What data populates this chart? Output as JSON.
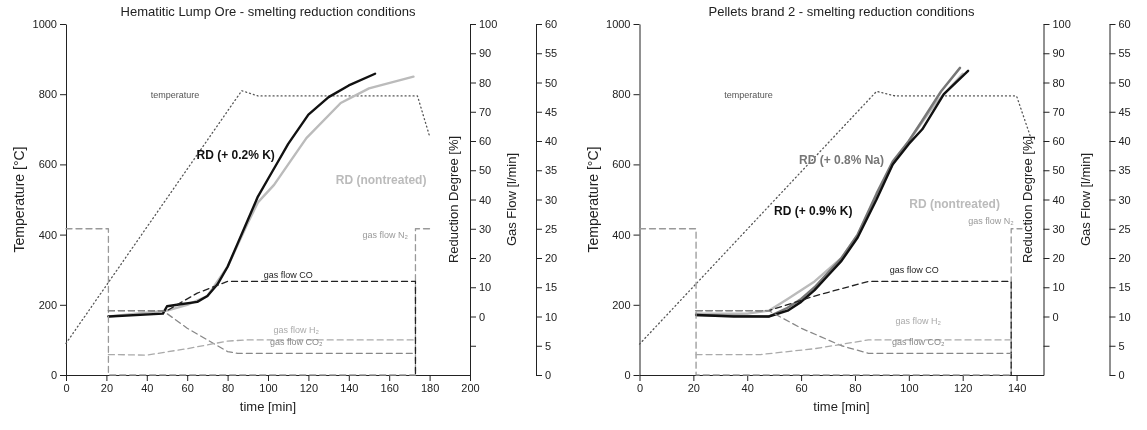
{
  "chart_data": [
    {
      "type": "line",
      "title": "Hematitic Lump Ore - smelting reduction conditions",
      "xlabel": "time [min]",
      "ylabel": "Temperature [°C]",
      "y2label": "Reduction Degree [%]",
      "y3label": "Gas Flow [l/min]",
      "xlim": [
        0,
        200
      ],
      "xticks": [
        0,
        20,
        40,
        60,
        80,
        100,
        120,
        140,
        160,
        180,
        200
      ],
      "ylim": [
        0,
        1000
      ],
      "yticks": [
        0,
        200,
        400,
        600,
        800,
        1000
      ],
      "y2lim": [
        -20,
        100
      ],
      "y2ticks": [
        {
          "value": -10,
          "label": null
        },
        0,
        10,
        20,
        30,
        40,
        50,
        60,
        70,
        80,
        90,
        100
      ],
      "y3lim": [
        0,
        60
      ],
      "y3ticks": [
        0,
        5,
        10,
        15,
        20,
        25,
        30,
        35,
        40,
        45,
        50,
        55,
        60
      ],
      "marker": "none",
      "series": [
        {
          "name": "temperature",
          "color": "#555555",
          "line_style": "dotted",
          "x": [
            0,
            87,
            95,
            174,
            180
          ],
          "values": [
            90,
            810,
            795,
            795,
            680
          ]
        },
        {
          "name": "RD (nontreated)",
          "color": "#bbbbbb",
          "axis": "y2",
          "line_style": "solid",
          "x": [
            21,
            50,
            60,
            70,
            80,
            90,
            95,
            103,
            110,
            119,
            136,
            150,
            172
          ],
          "values": [
            0,
            2,
            4,
            7,
            17,
            32,
            39,
            45,
            52,
            61,
            73,
            78,
            82
          ]
        },
        {
          "name": "RD (+ 0.2% K)",
          "color": "#111111",
          "axis": "y2",
          "line_style": "solid",
          "x": [
            21,
            48,
            50,
            55,
            65,
            70,
            75,
            80,
            85,
            90,
            95,
            100,
            105,
            110,
            120,
            130,
            140,
            153
          ],
          "values": [
            0,
            1,
            3.5,
            4,
            5,
            7,
            11,
            17,
            25,
            33,
            41,
            47,
            53,
            59,
            69,
            75,
            79,
            83
          ]
        },
        {
          "name": "gas flow N₂",
          "color": "#999999",
          "axis": "y3",
          "line_style": "dashed",
          "x": [
            0,
            21,
            21,
            173,
            173,
            180
          ],
          "values": [
            25,
            25,
            0,
            0,
            25,
            25
          ]
        },
        {
          "name": "gas flow CO",
          "color": "#222222",
          "axis": "y3",
          "line_style": "dashed",
          "x": [
            21,
            50,
            65,
            80,
            173,
            173
          ],
          "values": [
            11,
            11,
            14,
            16,
            16,
            0
          ]
        },
        {
          "name": "gas flow CO₂",
          "color": "#888888",
          "axis": "y3",
          "line_style": "dashed",
          "x": [
            21,
            48,
            60,
            70,
            80,
            85,
            173
          ],
          "values": [
            11,
            11,
            8,
            6,
            4,
            3.7,
            3.7
          ]
        },
        {
          "name": "gas flow H₂",
          "color": "#aaaaaa",
          "axis": "y3",
          "line_style": "dashed",
          "x": [
            21,
            40,
            60,
            80,
            90,
            173
          ],
          "values": [
            3.5,
            3.4,
            4.5,
            5.8,
            6,
            6
          ]
        }
      ]
    },
    {
      "type": "line",
      "title": "Pellets brand 2 - smelting reduction conditions",
      "xlabel": "time [min]",
      "ylabel": "Temperature [°C]",
      "y2label": "Reduction Degree [%]",
      "y3label": "Gas Flow [l/min]",
      "xlim": [
        0,
        150
      ],
      "xticks": [
        0,
        20,
        40,
        60,
        80,
        100,
        120,
        140
      ],
      "ylim": [
        0,
        1000
      ],
      "yticks": [
        0,
        200,
        400,
        600,
        800,
        1000
      ],
      "y2lim": [
        -20,
        100
      ],
      "y2ticks": [
        {
          "value": -10,
          "label": null
        },
        0,
        10,
        20,
        30,
        40,
        50,
        60,
        70,
        80,
        90,
        100
      ],
      "y3lim": [
        0,
        60
      ],
      "y3ticks": [
        0,
        5,
        10,
        15,
        20,
        25,
        30,
        35,
        40,
        45,
        50,
        55,
        60
      ],
      "marker": "none",
      "series": [
        {
          "name": "temperature",
          "color": "#555555",
          "line_style": "dotted",
          "x": [
            0,
            88,
            95,
            140,
            146
          ],
          "values": [
            88,
            808,
            795,
            795,
            660
          ]
        },
        {
          "name": "RD (nontreated)",
          "color": "#bbbbbb",
          "axis": "y2",
          "line_style": "solid",
          "x": [
            21,
            40,
            48,
            55,
            60,
            65,
            70,
            75,
            81,
            88,
            94,
            100,
            110,
            120
          ],
          "values": [
            1,
            1,
            2,
            6,
            9,
            12,
            16,
            20,
            28,
            41,
            52,
            60,
            73,
            83
          ]
        },
        {
          "name": "RD (+ 0.8% Na)",
          "color": "#777777",
          "axis": "y2",
          "line_style": "solid",
          "x": [
            21,
            48,
            55,
            60,
            65,
            70,
            75,
            81,
            88,
            94,
            100,
            105,
            112,
            119
          ],
          "values": [
            0.5,
            0,
            3,
            6,
            10,
            15,
            20,
            28,
            42,
            53,
            60,
            67,
            77,
            85
          ]
        },
        {
          "name": "RD (+ 0.9% K)",
          "color": "#111111",
          "axis": "y2",
          "line_style": "solid",
          "x": [
            21,
            35,
            48,
            55,
            60,
            65,
            70,
            75,
            81,
            88,
            94,
            100,
            105,
            113,
            122
          ],
          "values": [
            0.5,
            0,
            0,
            2,
            5,
            9,
            14,
            19,
            27,
            40,
            52,
            59,
            64,
            76,
            84
          ]
        },
        {
          "name": "gas flow N₂",
          "color": "#999999",
          "axis": "y3",
          "line_style": "dashed",
          "x": [
            0,
            21,
            21,
            138,
            138,
            142
          ],
          "values": [
            25,
            25,
            0,
            0,
            25,
            25
          ]
        },
        {
          "name": "gas flow CO",
          "color": "#222222",
          "axis": "y3",
          "line_style": "dashed",
          "x": [
            21,
            48,
            65,
            85,
            138,
            138
          ],
          "values": [
            11,
            11,
            13.5,
            16,
            16,
            0
          ]
        },
        {
          "name": "gas flow CO₂",
          "color": "#888888",
          "axis": "y3",
          "line_style": "dashed",
          "x": [
            21,
            48,
            60,
            75,
            85,
            138
          ],
          "values": [
            11,
            11,
            8,
            5,
            3.7,
            3.7
          ]
        },
        {
          "name": "gas flow H₂",
          "color": "#aaaaaa",
          "axis": "y3",
          "line_style": "dashed",
          "x": [
            21,
            45,
            65,
            85,
            138
          ],
          "values": [
            3.5,
            3.5,
            4.5,
            6,
            6
          ]
        }
      ]
    }
  ]
}
